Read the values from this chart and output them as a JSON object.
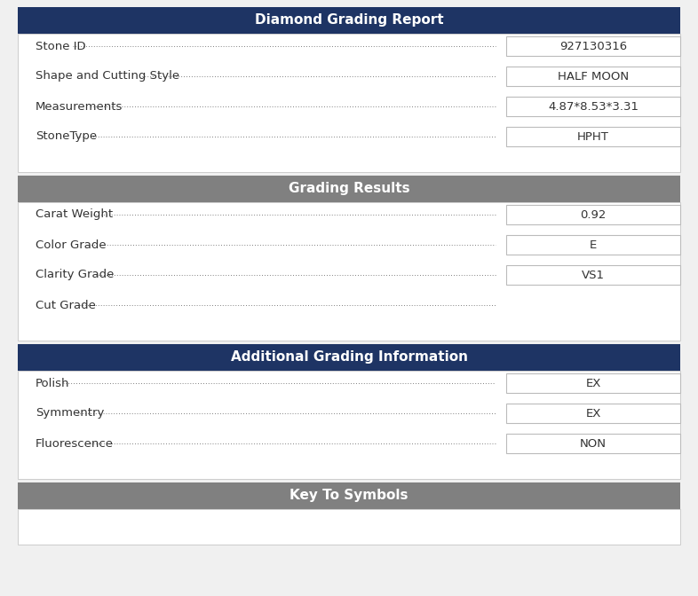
{
  "title": "Diamond Grading Report",
  "title_bg": "#1e3464",
  "title_color": "#ffffff",
  "section2_title": "Grading Results",
  "section2_bg": "#808080",
  "section2_color": "#ffffff",
  "section3_title": "Additional Grading Information",
  "section3_bg": "#1e3464",
  "section3_color": "#ffffff",
  "section4_title": "Key To Symbols",
  "section4_bg": "#808080",
  "section4_color": "#ffffff",
  "page_bg": "#f0f0f0",
  "content_bg": "#ffffff",
  "label_color": "#333333",
  "value_box_edge": "#bbbbbb",
  "dot_color": "#555555",
  "section1_rows": [
    {
      "label": "Stone ID",
      "value": "927130316"
    },
    {
      "label": "Shape and Cutting Style",
      "value": "HALF MOON"
    },
    {
      "label": "Measurements",
      "value": "4.87*8.53*3.31"
    },
    {
      "label": "StoneType",
      "value": "HPHT"
    }
  ],
  "section2_rows": [
    {
      "label": "Carat Weight",
      "value": "0.92"
    },
    {
      "label": "Color Grade",
      "value": "E"
    },
    {
      "label": "Clarity Grade",
      "value": "VS1"
    },
    {
      "label": "Cut Grade",
      "value": ""
    }
  ],
  "section3_rows": [
    {
      "label": "Polish",
      "value": "EX"
    },
    {
      "label": "Symmentry",
      "value": "EX"
    },
    {
      "label": "Fluorescence",
      "value": "NON"
    }
  ],
  "font_size": 9.5,
  "header_font_size": 11,
  "fig_width": 7.86,
  "fig_height": 6.72
}
